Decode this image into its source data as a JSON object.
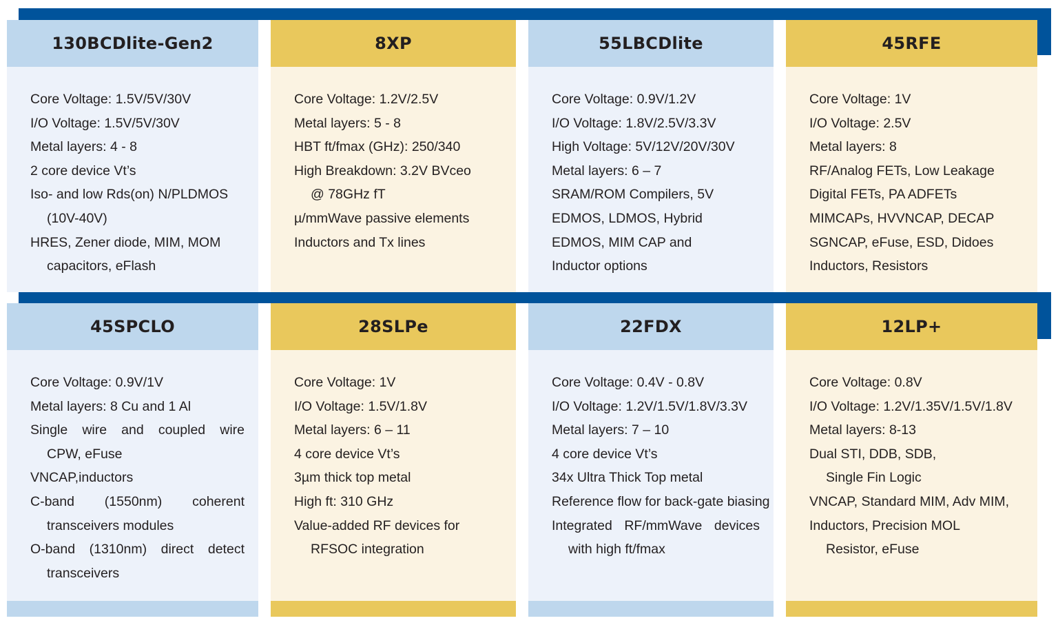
{
  "colors": {
    "bar_blue": "#00539B",
    "header_blue": "#BED7ED",
    "body_blue": "#EDF2FA",
    "header_gold": "#E9C85C",
    "body_gold": "#FBF3E2",
    "text": "#231F20"
  },
  "rows": [
    {
      "cards": [
        {
          "title": "130BCDlite-Gen2",
          "theme": "blue",
          "lines": [
            {
              "text": "Core Voltage: 1.5V/5V/30V"
            },
            {
              "text": "I/O Voltage: 1.5V/5V/30V"
            },
            {
              "text": "Metal layers: 4 - 8"
            },
            {
              "text": "2 core device Vt’s"
            },
            {
              "text": "Iso- and low Rds(on) N/PLDMOS"
            },
            {
              "text": "(10V-40V)",
              "indent": true
            },
            {
              "text": "HRES, Zener diode, MIM, MOM"
            },
            {
              "text": "capacitors, eFlash",
              "indent": true
            }
          ]
        },
        {
          "title": "8XP",
          "theme": "gold",
          "lines": [
            {
              "text": "Core Voltage: 1.2V/2.5V"
            },
            {
              "text": "Metal layers: 5 - 8"
            },
            {
              "text": "HBT ft/fmax (GHz): 250/340"
            },
            {
              "text": "High Breakdown: 3.2V BVceo"
            },
            {
              "text": "@ 78GHz fT",
              "indent": true
            },
            {
              "text": "µ/mmWave passive elements"
            },
            {
              "text": "Inductors and Tx lines"
            }
          ]
        },
        {
          "title": "55LBCDlite",
          "theme": "blue",
          "lines": [
            {
              "text": "Core Voltage: 0.9V/1.2V"
            },
            {
              "text": "I/O Voltage: 1.8V/2.5V/3.3V"
            },
            {
              "text": "High Voltage: 5V/12V/20V/30V"
            },
            {
              "text": "Metal layers: 6 – 7"
            },
            {
              "text": "SRAM/ROM Compilers, 5V"
            },
            {
              "text": "EDMOS, LDMOS, Hybrid"
            },
            {
              "text": "EDMOS, MIM CAP and"
            },
            {
              "text": "Inductor options"
            }
          ]
        },
        {
          "title": "45RFE",
          "theme": "gold",
          "lines": [
            {
              "text": "Core Voltage: 1V"
            },
            {
              "text": "I/O Voltage: 2.5V"
            },
            {
              "text": "Metal layers: 8"
            },
            {
              "text": "RF/Analog FETs, Low Leakage"
            },
            {
              "text": "Digital FETs, PA ADFETs"
            },
            {
              "text": "MIMCAPs, HVVNCAP, DECAP"
            },
            {
              "text": "SGNCAP, eFuse, ESD, Didoes"
            },
            {
              "text": "Inductors, Resistors"
            }
          ]
        }
      ]
    },
    {
      "cards": [
        {
          "title": "45SPCLO",
          "theme": "blue",
          "lines": [
            {
              "text": "Core Voltage: 0.9V/1V"
            },
            {
              "text": "Metal layers: 8 Cu and 1 Al"
            },
            {
              "text": "Single wire and coupled wire",
              "justify": true
            },
            {
              "text": "CPW, eFuse",
              "indent": true
            },
            {
              "text": "VNCAP,inductors"
            },
            {
              "text": "C-band (1550nm) coherent",
              "justify": true
            },
            {
              "text": "transceivers modules",
              "indent": true
            },
            {
              "text": "O-band (1310nm) direct detect",
              "justify": true
            },
            {
              "text": "transceivers",
              "indent": true
            }
          ]
        },
        {
          "title": "28SLPe",
          "theme": "gold",
          "lines": [
            {
              "text": "Core Voltage: 1V"
            },
            {
              "text": "I/O Voltage: 1.5V/1.8V"
            },
            {
              "text": "Metal layers: 6 – 11"
            },
            {
              "text": "4 core device Vt’s"
            },
            {
              "text": "3µm thick top metal"
            },
            {
              "text": "High ft: 310 GHz"
            },
            {
              "text": "Value-added RF devices for"
            },
            {
              "text": "RFSOC integration",
              "indent": true
            }
          ]
        },
        {
          "title": "22FDX",
          "theme": "blue",
          "lines": [
            {
              "text": "Core Voltage: 0.4V - 0.8V"
            },
            {
              "text": "I/O Voltage: 1.2V/1.5V/1.8V/3.3V"
            },
            {
              "text": "Metal layers: 7 – 10"
            },
            {
              "text": "4 core device Vt’s"
            },
            {
              "text": "34x Ultra Thick Top metal"
            },
            {
              "text": "Reference flow for back-gate biasing"
            },
            {
              "text": "Integrated RF/mmWave devices",
              "justify": true
            },
            {
              "text": "with high ft/fmax",
              "indent": true
            }
          ]
        },
        {
          "title": "12LP+",
          "theme": "gold",
          "lines": [
            {
              "text": "Core Voltage: 0.8V"
            },
            {
              "text": "I/O Voltage: 1.2V/1.35V/1.5V/1.8V"
            },
            {
              "text": "Metal layers: 8-13"
            },
            {
              "text": "Dual STI, DDB, SDB,"
            },
            {
              "text": "Single Fin Logic",
              "indent": true
            },
            {
              "text": "VNCAP, Standard MIM, Adv MIM,"
            },
            {
              "text": "Inductors, Precision MOL"
            },
            {
              "text": "Resistor, eFuse",
              "indent": true
            }
          ]
        }
      ]
    }
  ]
}
